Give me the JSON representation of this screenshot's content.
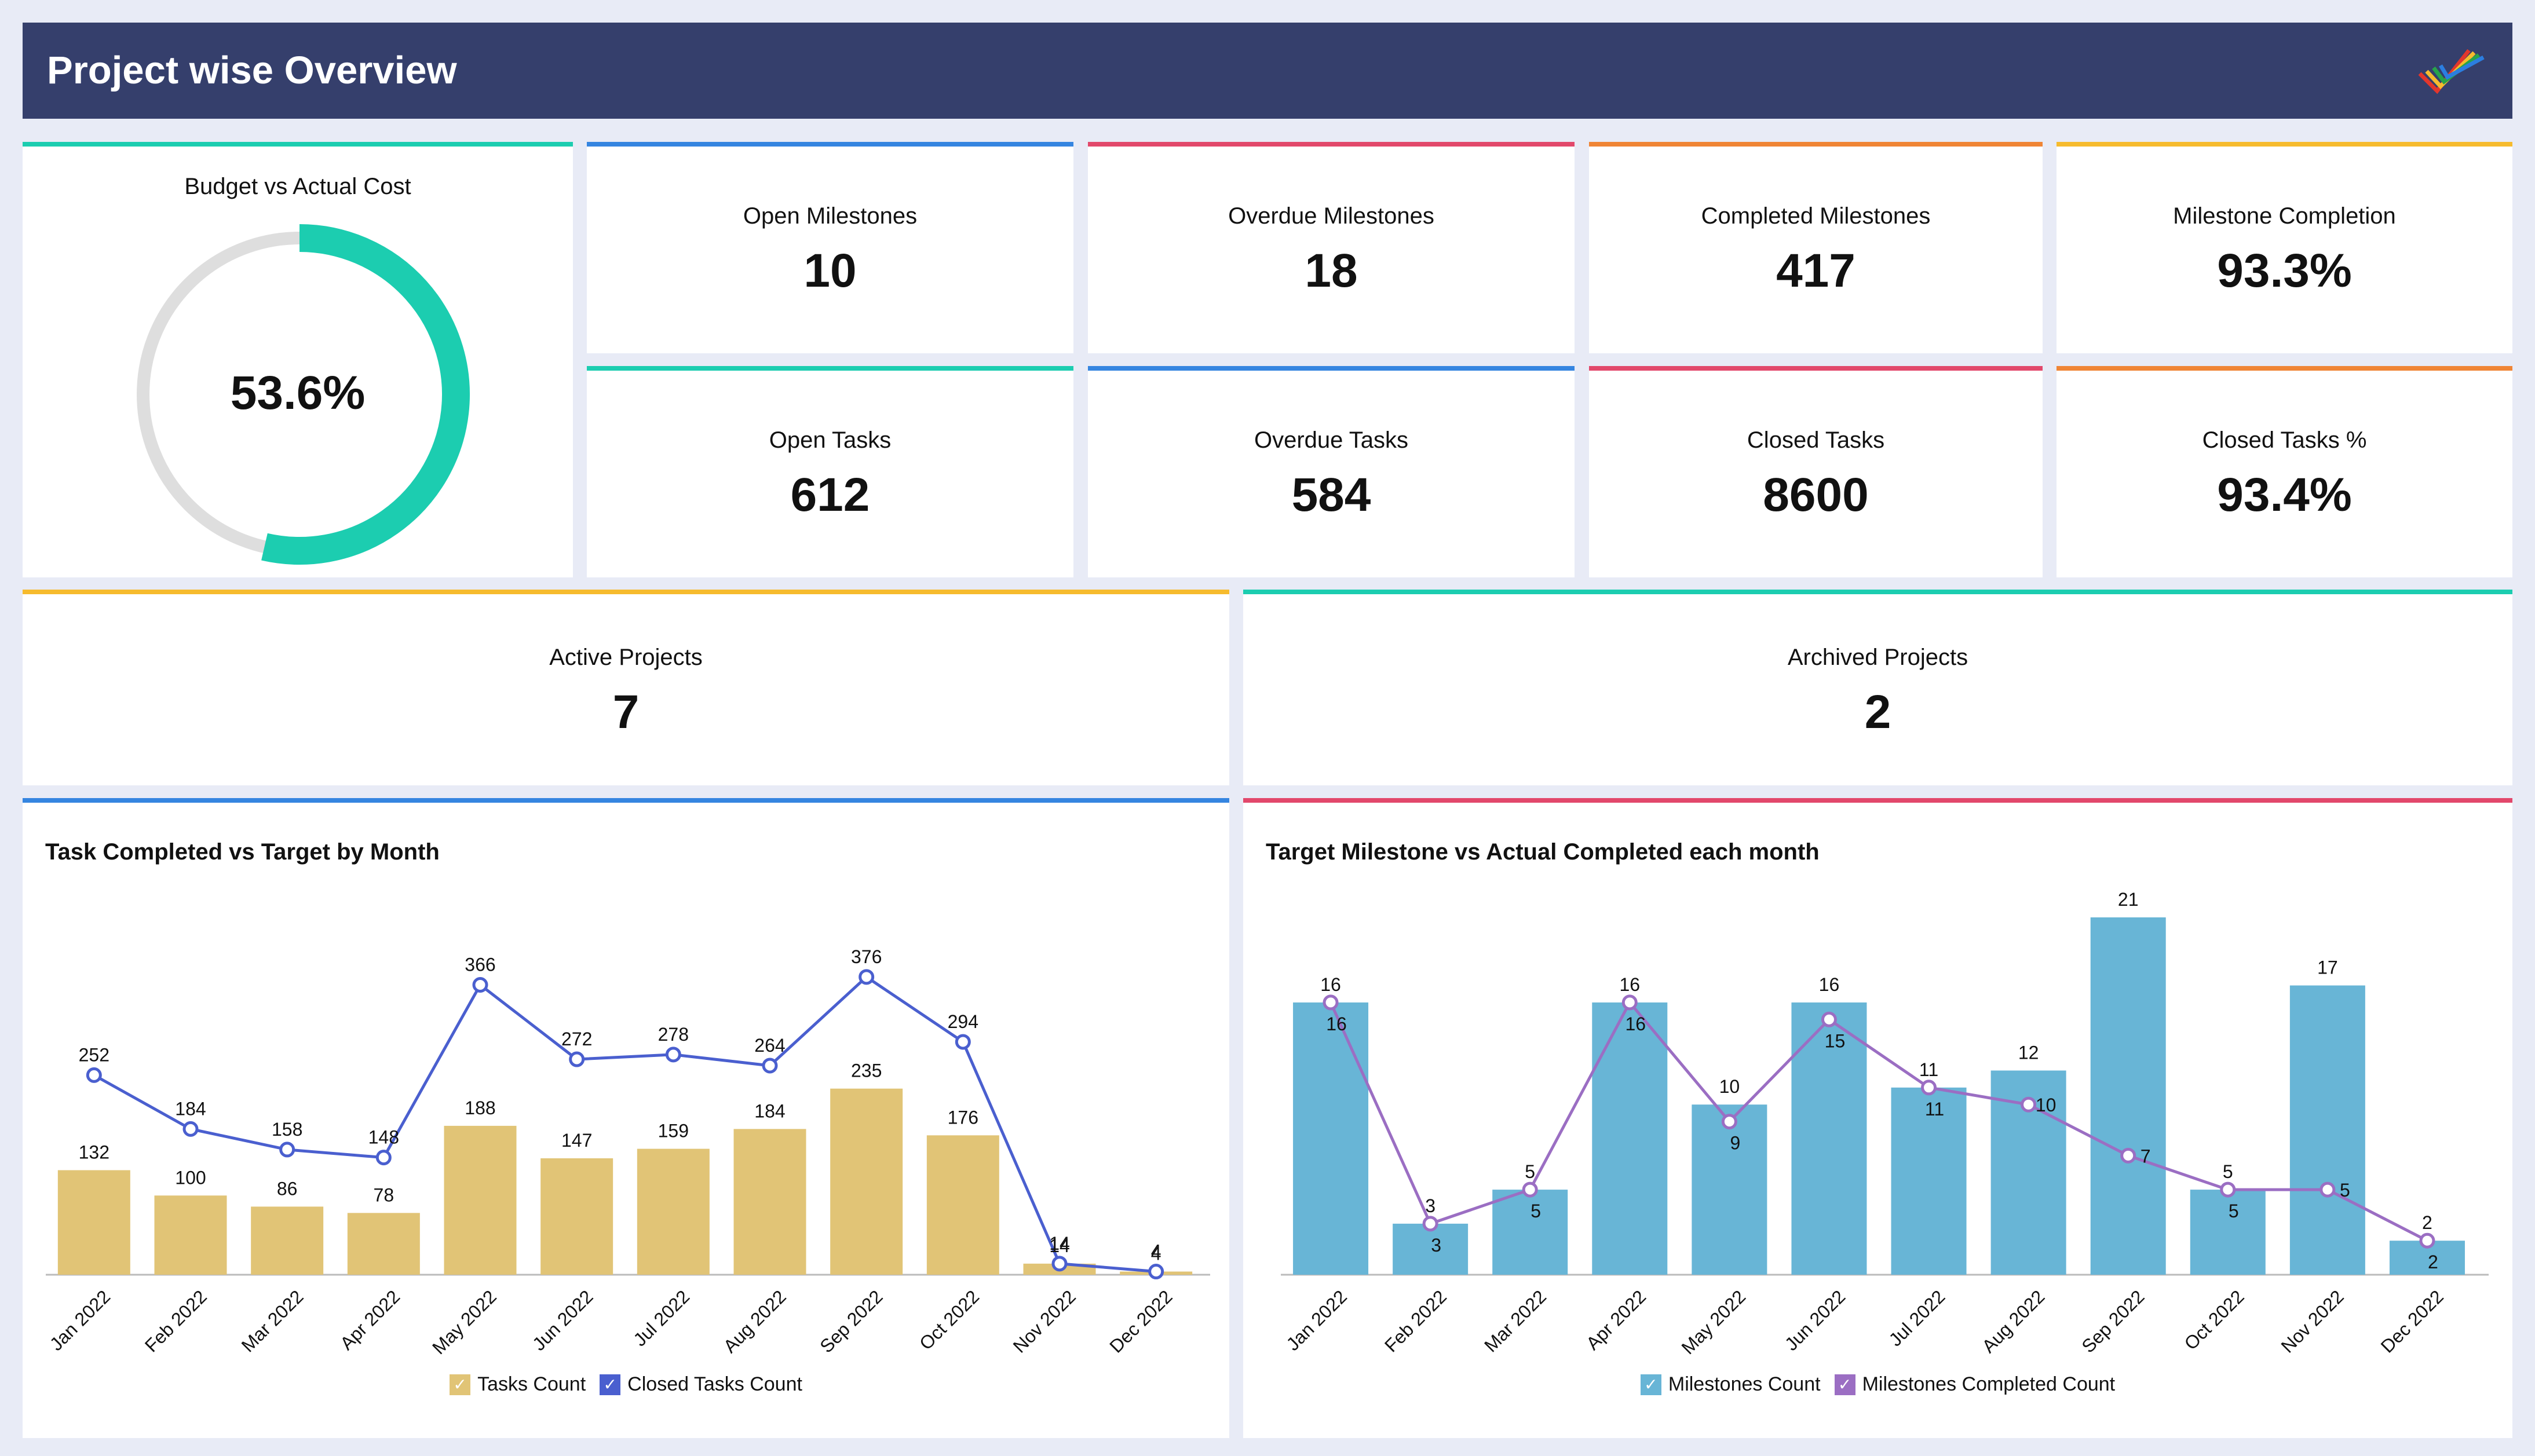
{
  "header": {
    "title": "Project wise Overview",
    "logo_icon": "zoho-analytics-logo-icon"
  },
  "budget": {
    "title": "Budget vs Actual Cost",
    "value_label": "53.6%",
    "value": 53.6,
    "accent": "#1ccdb0",
    "track": "#dedede"
  },
  "kpis": [
    {
      "title": "Open Milestones",
      "value": "10",
      "accent": "#3585e0"
    },
    {
      "title": "Overdue Milestones",
      "value": "18",
      "accent": "#e2486b"
    },
    {
      "title": "Completed Milestones",
      "value": "417",
      "accent": "#f08535"
    },
    {
      "title": "Milestone Completion",
      "value": "93.3%",
      "accent": "#f6bb2e"
    },
    {
      "title": "Open Tasks",
      "value": "612",
      "accent": "#1ccdb0"
    },
    {
      "title": "Overdue Tasks",
      "value": "584",
      "accent": "#3585e0"
    },
    {
      "title": "Closed Tasks",
      "value": "8600",
      "accent": "#e2486b"
    },
    {
      "title": "Closed Tasks %",
      "value": "93.4%",
      "accent": "#f08535"
    }
  ],
  "projects": [
    {
      "title": "Active Projects",
      "value": "7",
      "accent": "#f6bb2e"
    },
    {
      "title": "Archived Projects",
      "value": "2",
      "accent": "#1ccdb0"
    }
  ],
  "chart_data": [
    {
      "type": "bar",
      "title": "Task Completed vs Target by Month",
      "accent": "#3585e0",
      "categories": [
        "Jan 2022",
        "Feb 2022",
        "Mar 2022",
        "Apr 2022",
        "May 2022",
        "Jun 2022",
        "Jul 2022",
        "Aug 2022",
        "Sep 2022",
        "Oct 2022",
        "Nov 2022",
        "Dec 2022"
      ],
      "series": [
        {
          "name": "Tasks Count",
          "kind": "bar",
          "color": "#e1c476",
          "values": [
            132,
            100,
            86,
            78,
            188,
            147,
            159,
            184,
            235,
            176,
            14,
            4
          ]
        },
        {
          "name": "Closed Tasks Count",
          "kind": "line",
          "color": "#4a5fcf",
          "values": [
            252,
            184,
            158,
            148,
            366,
            272,
            278,
            264,
            376,
            294,
            14,
            4
          ]
        }
      ],
      "ylim": [
        0,
        400
      ],
      "legend": "bottom"
    },
    {
      "type": "bar",
      "title": "Target Milestone vs Actual Completed each month",
      "accent": "#e2486b",
      "categories": [
        "Jan 2022",
        "Feb 2022",
        "Mar 2022",
        "Apr 2022",
        "May 2022",
        "Jun 2022",
        "Jul 2022",
        "Aug 2022",
        "Sep 2022",
        "Oct 2022",
        "Nov 2022",
        "Dec 2022"
      ],
      "series": [
        {
          "name": "Milestones Count",
          "kind": "bar",
          "color": "#68b5d6",
          "values": [
            16,
            3,
            5,
            16,
            10,
            16,
            11,
            12,
            21,
            5,
            17,
            2
          ]
        },
        {
          "name": "Milestones Completed Count",
          "kind": "line",
          "color": "#9b6ec3",
          "values": [
            16,
            3,
            5,
            16,
            9,
            15,
            11,
            10,
            7,
            5,
            5,
            2
          ]
        }
      ],
      "ylim": [
        0,
        21
      ],
      "legend": "bottom"
    }
  ]
}
